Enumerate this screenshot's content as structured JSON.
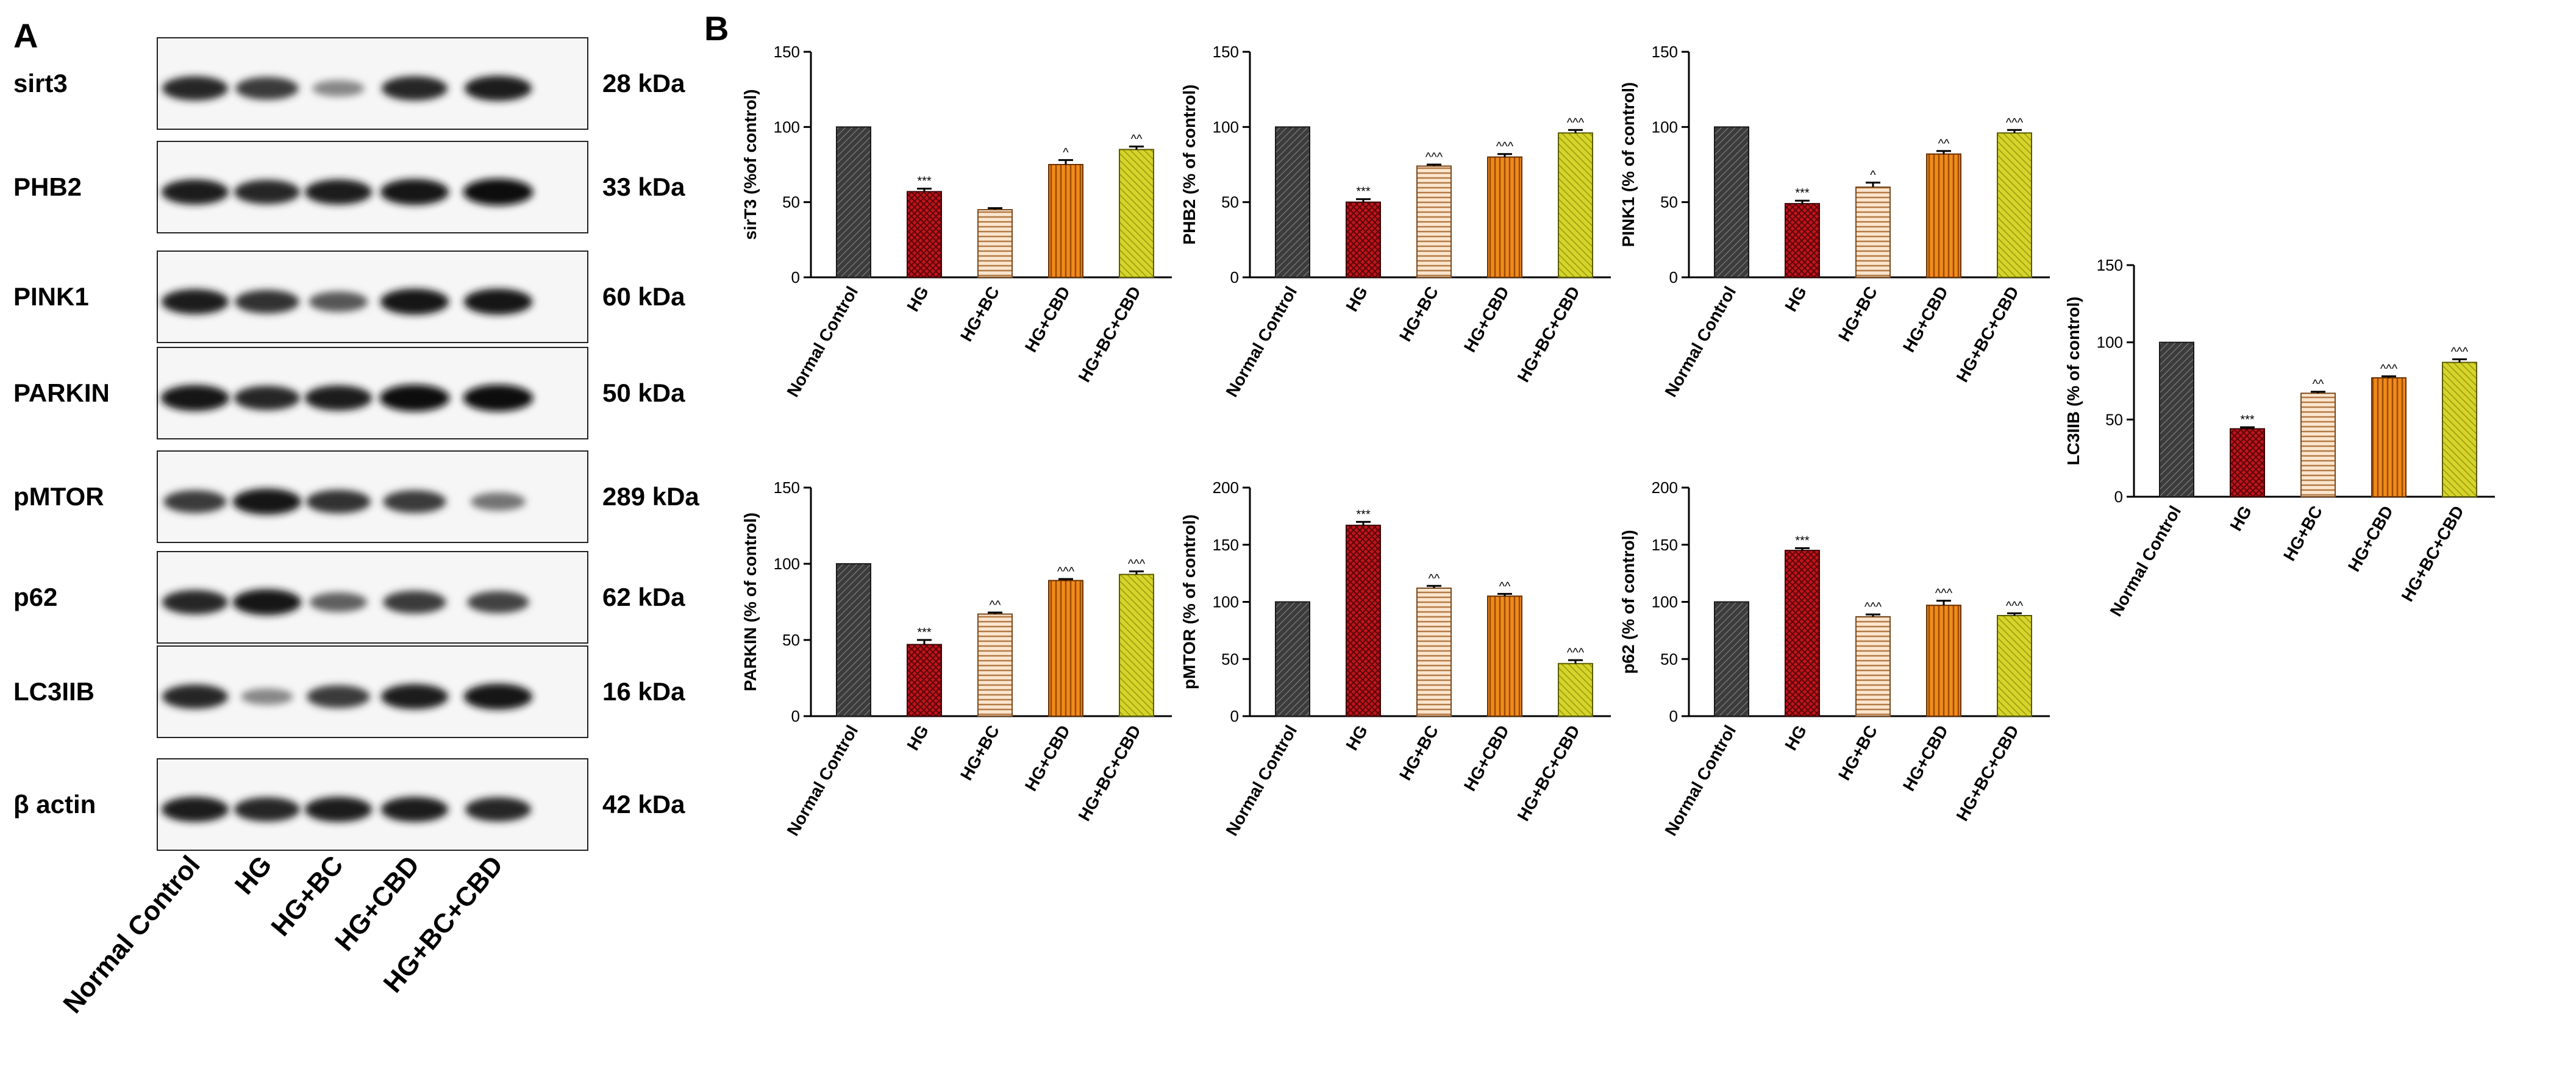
{
  "panels": {
    "a": "A",
    "b": "B"
  },
  "western_blot": {
    "rows": [
      {
        "protein": "sirt3",
        "kda": "28 kDa",
        "intensity": [
          0.85,
          0.75,
          0.35,
          0.85,
          0.9
        ]
      },
      {
        "protein": "PHB2",
        "kda": "33 kDa",
        "intensity": [
          0.9,
          0.85,
          0.9,
          0.95,
          1.0
        ]
      },
      {
        "protein": "PINK1",
        "kda": "60 kDa",
        "intensity": [
          0.9,
          0.8,
          0.6,
          0.95,
          0.95
        ]
      },
      {
        "protein": "PARKIN",
        "kda": "50 kDa",
        "intensity": [
          0.95,
          0.85,
          0.9,
          1.0,
          1.0
        ]
      },
      {
        "protein": "pMTOR",
        "kda": "289 kDa",
        "intensity": [
          0.75,
          0.95,
          0.8,
          0.75,
          0.45
        ]
      },
      {
        "protein": "p62",
        "kda": "62 kDa",
        "intensity": [
          0.85,
          0.95,
          0.55,
          0.75,
          0.7
        ]
      },
      {
        "protein": "LC3IIB",
        "kda": "16 kDa",
        "intensity": [
          0.85,
          0.35,
          0.75,
          0.9,
          0.95
        ]
      },
      {
        "protein": "β actin",
        "kda": "42 kDa",
        "intensity": [
          0.9,
          0.85,
          0.9,
          0.9,
          0.85
        ]
      }
    ],
    "lanes": [
      "Normal Control",
      "HG",
      "HG+BC",
      "HG+CBD",
      "HG+BC+CBD"
    ]
  },
  "colors": {
    "normal_control": "#4a4a4a",
    "hg": "#c0141c",
    "hg_bc": "#f2c9a0",
    "hg_cbd": "#e8790f",
    "hg_bc_cbd": "#c8c81a"
  },
  "chart_data": [
    {
      "type": "bar",
      "title": "",
      "ylabel": "sirT3 (%of control)",
      "xlabel": "",
      "ylim": [
        0,
        150
      ],
      "ticks": [
        0,
        50,
        100,
        150
      ],
      "categories": [
        "Normal Control",
        "HG",
        "HG+BC",
        "HG+CBD",
        "HG+BC+CBD"
      ],
      "values": [
        100,
        57,
        45,
        75,
        85
      ],
      "errors": [
        0,
        2,
        1,
        3,
        2
      ],
      "annotations": [
        "",
        "***",
        "",
        "^",
        "^^"
      ]
    },
    {
      "type": "bar",
      "title": "",
      "ylabel": "PHB2 (% of control)",
      "xlabel": "",
      "ylim": [
        0,
        150
      ],
      "ticks": [
        0,
        50,
        100,
        150
      ],
      "categories": [
        "Normal Control",
        "HG",
        "HG+BC",
        "HG+CBD",
        "HG+BC+CBD"
      ],
      "values": [
        100,
        50,
        74,
        80,
        96
      ],
      "errors": [
        0,
        2,
        1,
        2,
        2
      ],
      "annotations": [
        "",
        "***",
        "^^^",
        "^^^",
        "^^^"
      ]
    },
    {
      "type": "bar",
      "title": "",
      "ylabel": "PINK1 (% of control)",
      "xlabel": "",
      "ylim": [
        0,
        150
      ],
      "ticks": [
        0,
        50,
        100,
        150
      ],
      "categories": [
        "Normal Control",
        "HG",
        "HG+BC",
        "HG+CBD",
        "HG+BC+CBD"
      ],
      "values": [
        100,
        49,
        60,
        82,
        96
      ],
      "errors": [
        0,
        2,
        3,
        2,
        2
      ],
      "annotations": [
        "",
        "***",
        "^",
        "^^",
        "^^^"
      ]
    },
    {
      "type": "bar",
      "title": "",
      "ylabel": "LC3IIB (% of control)",
      "xlabel": "",
      "ylim": [
        0,
        150
      ],
      "ticks": [
        0,
        50,
        100,
        150
      ],
      "categories": [
        "Normal Control",
        "HG",
        "HG+BC",
        "HG+CBD",
        "HG+BC+CBD"
      ],
      "values": [
        100,
        44,
        67,
        77,
        87
      ],
      "errors": [
        0,
        1,
        1,
        1,
        2
      ],
      "annotations": [
        "",
        "***",
        "^^",
        "^^^",
        "^^^"
      ]
    },
    {
      "type": "bar",
      "title": "",
      "ylabel": "PARKIN (% of control)",
      "xlabel": "",
      "ylim": [
        0,
        150
      ],
      "ticks": [
        0,
        50,
        100,
        150
      ],
      "categories": [
        "Normal Control",
        "HG",
        "HG+BC",
        "HG+CBD",
        "HG+BC+CBD"
      ],
      "values": [
        100,
        47,
        67,
        89,
        93
      ],
      "errors": [
        0,
        3,
        1,
        1,
        2
      ],
      "annotations": [
        "",
        "***",
        "^^",
        "^^^",
        "^^^"
      ]
    },
    {
      "type": "bar",
      "title": "",
      "ylabel": "pMTOR (% of control)",
      "xlabel": "",
      "ylim": [
        0,
        200
      ],
      "ticks": [
        0,
        50,
        100,
        150,
        200
      ],
      "categories": [
        "Normal Control",
        "HG",
        "HG+BC",
        "HG+CBD",
        "HG+BC+CBD"
      ],
      "values": [
        100,
        167,
        112,
        105,
        46
      ],
      "errors": [
        0,
        3,
        2,
        2,
        3
      ],
      "annotations": [
        "",
        "***",
        "^^",
        "^^",
        "^^^"
      ]
    },
    {
      "type": "bar",
      "title": "",
      "ylabel": "p62 (% of control)",
      "xlabel": "",
      "ylim": [
        0,
        200
      ],
      "ticks": [
        0,
        50,
        100,
        150,
        200
      ],
      "categories": [
        "Normal Control",
        "HG",
        "HG+BC",
        "HG+CBD",
        "HG+BC+CBD"
      ],
      "values": [
        100,
        145,
        87,
        97,
        88
      ],
      "errors": [
        0,
        2,
        2,
        4,
        2
      ],
      "annotations": [
        "",
        "***",
        "^^^",
        "^^^",
        "^^^"
      ]
    }
  ]
}
